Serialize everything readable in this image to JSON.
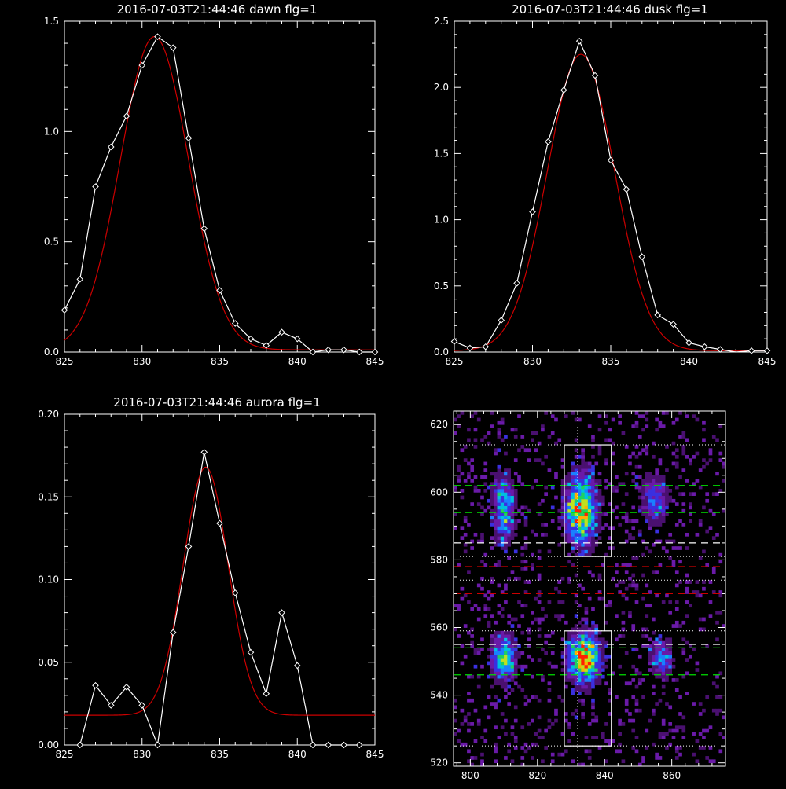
{
  "colors": {
    "background": "#000000",
    "axes": "#ffffff",
    "data_line": "#ffffff",
    "fit_line": "#cc0000",
    "green_dash": "#00dd00",
    "red_dash": "#cc0000",
    "white_dash": "#ffffff"
  },
  "chart_data": [
    {
      "id": "dawn",
      "type": "line",
      "title": "2016-07-03T21:44:46 dawn flg=1",
      "xlim": [
        825,
        845
      ],
      "ylim": [
        0,
        1.5
      ],
      "xticks": [
        "825",
        "830",
        "835",
        "840",
        "845"
      ],
      "yticks": [
        "0.0",
        "0.5",
        "1.0",
        "1.5"
      ],
      "series": [
        {
          "role": "data",
          "marker": "diamond",
          "x": [
            825,
            826,
            827,
            828,
            829,
            830,
            831,
            832,
            833,
            834,
            835,
            836,
            837,
            838,
            839,
            840,
            841,
            842,
            843,
            844,
            845
          ],
          "y": [
            0.19,
            0.33,
            0.75,
            0.93,
            1.07,
            1.3,
            1.43,
            1.38,
            0.97,
            0.56,
            0.28,
            0.13,
            0.06,
            0.03,
            0.09,
            0.06,
            0.0,
            0.01,
            0.01,
            0.0,
            0.0
          ]
        },
        {
          "role": "fit",
          "model": "gaussian",
          "amplitude": 1.42,
          "center": 830.8,
          "sigma": 2.2,
          "baseline": 0.01
        }
      ]
    },
    {
      "id": "dusk",
      "type": "line",
      "title": "2016-07-03T21:44:46 dusk flg=1",
      "xlim": [
        825,
        845
      ],
      "ylim": [
        0,
        2.5
      ],
      "xticks": [
        "825",
        "830",
        "835",
        "840",
        "845"
      ],
      "yticks": [
        "0.0",
        "0.5",
        "1.0",
        "1.5",
        "2.0",
        "2.5"
      ],
      "series": [
        {
          "role": "data",
          "marker": "diamond",
          "x": [
            825,
            826,
            827,
            828,
            829,
            830,
            831,
            832,
            833,
            834,
            835,
            836,
            837,
            838,
            839,
            840,
            841,
            842,
            843,
            844,
            845
          ],
          "y": [
            0.08,
            0.03,
            0.04,
            0.24,
            0.52,
            1.06,
            1.59,
            1.98,
            2.35,
            2.09,
            1.45,
            1.23,
            0.72,
            0.28,
            0.21,
            0.07,
            0.04,
            0.02,
            0.0,
            0.01,
            0.01
          ],
          "hidden_markers": [
            18
          ]
        },
        {
          "role": "fit",
          "model": "gaussian",
          "amplitude": 2.24,
          "center": 833.1,
          "sigma": 2.15,
          "baseline": 0.01
        }
      ]
    },
    {
      "id": "aurora",
      "type": "line",
      "title": "2016-07-03T21:44:46 aurora flg=1",
      "xlim": [
        825,
        845
      ],
      "ylim": [
        0,
        0.2
      ],
      "xticks": [
        "825",
        "830",
        "835",
        "840",
        "845"
      ],
      "yticks": [
        "0.00",
        "0.05",
        "0.10",
        "0.15",
        "0.20"
      ],
      "series": [
        {
          "role": "data",
          "marker": "diamond",
          "x": [
            826,
            827,
            828,
            829,
            830,
            831,
            832,
            833,
            834,
            835,
            836,
            837,
            838,
            839,
            840,
            841,
            842,
            843,
            844
          ],
          "y": [
            0.0,
            0.036,
            0.024,
            0.035,
            0.024,
            0.0,
            0.068,
            0.12,
            0.177,
            0.134,
            0.092,
            0.056,
            0.031,
            0.08,
            0.048,
            0.0,
            0.0,
            0.0,
            0.0
          ]
        },
        {
          "role": "fit",
          "model": "gaussian",
          "amplitude": 0.15,
          "center": 834.1,
          "sigma": 1.45,
          "baseline": 0.018
        }
      ]
    },
    {
      "id": "spectrogram",
      "type": "heatmap",
      "title": "",
      "xlim": [
        795,
        876
      ],
      "ylim": [
        519,
        624
      ],
      "xticks": [
        "800",
        "820",
        "840",
        "860"
      ],
      "yticks": [
        "520",
        "540",
        "560",
        "580",
        "600",
        "620"
      ],
      "colormap": [
        "#000000",
        "#2a0a3a",
        "#4a1070",
        "#6a1aa8",
        "#3a30e0",
        "#1a80ff",
        "#00c0e0",
        "#20d060",
        "#c0e020",
        "#ffb000",
        "#ff2000"
      ],
      "blobs": [
        {
          "x": 810,
          "y": 595,
          "sx": 2.2,
          "sy": 7,
          "amp": 0.62
        },
        {
          "x": 833,
          "y": 595,
          "sx": 3.2,
          "sy": 7,
          "amp": 0.92
        },
        {
          "x": 855,
          "y": 598,
          "sx": 3.0,
          "sy": 5,
          "amp": 0.42
        },
        {
          "x": 810,
          "y": 551,
          "sx": 2.5,
          "sy": 4.5,
          "amp": 0.68
        },
        {
          "x": 834,
          "y": 551,
          "sx": 3.2,
          "sy": 5,
          "amp": 1.0
        },
        {
          "x": 857,
          "y": 551,
          "sx": 2.5,
          "sy": 4,
          "amp": 0.42
        }
      ],
      "white_boxes": [
        {
          "x0": 828,
          "x1": 842,
          "y0": 581,
          "y1": 614
        },
        {
          "x0": 828,
          "x1": 842,
          "y0": 525,
          "y1": 559
        }
      ],
      "connector_x": [
        840,
        841
      ],
      "connector_y": [
        559,
        581
      ],
      "dotted_vlines": [
        830,
        832
      ],
      "dotted_hlines": [
        614,
        581,
        574,
        559,
        525
      ],
      "green_dashed_hlines": [
        602,
        594,
        554,
        546
      ],
      "white_dashed_hlines": [
        585,
        555
      ],
      "red_dashed_hlines": [
        578,
        570
      ]
    }
  ]
}
